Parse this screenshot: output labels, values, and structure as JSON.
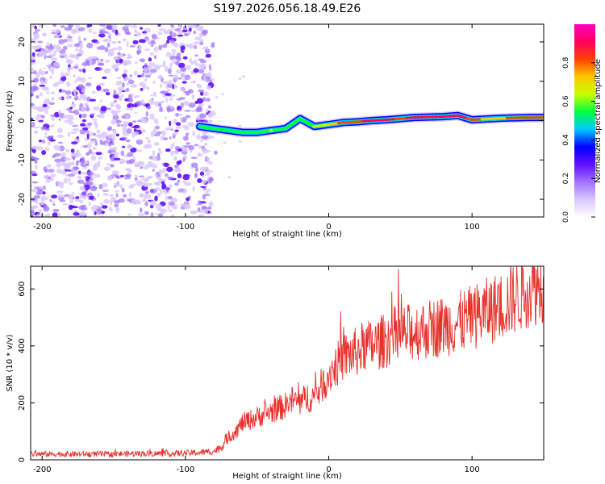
{
  "figure": {
    "title": "S197.2026.056.18.49.E26"
  },
  "chart_data": [
    {
      "type": "heatmap",
      "title": "S197.2026.056.18.49.E26",
      "xlabel": "Height of straight line (km)",
      "ylabel": "Frequency (Hz)",
      "xlim": [
        -208,
        150
      ],
      "ylim": [
        -24.5,
        24.5
      ],
      "x_ticks": [
        -200,
        -100,
        0,
        100
      ],
      "y_ticks": [
        -20,
        -10,
        0,
        10,
        20
      ],
      "noise_region": {
        "x_from": -208,
        "x_to": -82,
        "description": "scattered low-amplitude purple speckle"
      },
      "signal_track": {
        "x": [
          -90,
          -80,
          -70,
          -60,
          -50,
          -40,
          -30,
          -20,
          -10,
          0,
          10,
          20,
          30,
          40,
          50,
          60,
          70,
          80,
          90,
          100,
          110,
          120,
          130,
          140,
          150
        ],
        "frequency_hz": [
          -1.5,
          -2.0,
          -2.5,
          -3.0,
          -3.0,
          -2.5,
          -2.0,
          0.5,
          -1.5,
          -1.0,
          -0.5,
          -0.3,
          0.0,
          0.2,
          0.5,
          0.8,
          0.9,
          1.0,
          1.3,
          0.2,
          0.4,
          0.6,
          0.7,
          0.8,
          0.8
        ],
        "normalized_amplitude": [
          0.35,
          0.4,
          0.45,
          0.5,
          0.55,
          0.6,
          0.55,
          0.5,
          0.6,
          0.7,
          0.8,
          0.85,
          0.9,
          0.9,
          0.85,
          0.9,
          0.95,
          0.95,
          0.9,
          0.85,
          0.7,
          0.75,
          0.8,
          0.8,
          0.8
        ]
      },
      "colorbar": {
        "label": "Normalized spectral amplitude",
        "range": [
          0.0,
          1.0
        ],
        "ticks": [
          0.0,
          0.2,
          0.4,
          0.6,
          0.8
        ],
        "tick_labels": [
          "0.0",
          "0.2",
          "0.4",
          "0.6",
          "0.8"
        ],
        "colormap": [
          "#ffffff",
          "#d9c8ff",
          "#a070ff",
          "#6010ff",
          "#0000ff",
          "#00c8ff",
          "#00ff40",
          "#c8ff00",
          "#ffc800",
          "#ff4000",
          "#ff0060",
          "#ff00c0"
        ]
      }
    },
    {
      "type": "line",
      "xlabel": "Height of straight line (km)",
      "ylabel": "SNR (10 * v/v)",
      "xlim": [
        -208,
        150
      ],
      "ylim": [
        0,
        680
      ],
      "x_ticks": [
        -200,
        -100,
        0,
        100
      ],
      "y_ticks": [
        0,
        200,
        400,
        600
      ],
      "series": [
        {
          "name": "SNR",
          "color": "#e8302a",
          "x": [
            -208,
            -190,
            -170,
            -150,
            -130,
            -110,
            -90,
            -80,
            -75,
            -70,
            -65,
            -60,
            -55,
            -50,
            -45,
            -40,
            -35,
            -30,
            -25,
            -20,
            -15,
            -10,
            -5,
            0,
            5,
            10,
            15,
            20,
            25,
            30,
            35,
            40,
            45,
            50,
            60,
            70,
            80,
            90,
            100,
            110,
            120,
            130,
            140,
            150
          ],
          "y": [
            20,
            20,
            20,
            20,
            22,
            22,
            25,
            30,
            45,
            80,
            100,
            130,
            140,
            150,
            160,
            170,
            180,
            190,
            210,
            200,
            220,
            220,
            260,
            300,
            330,
            360,
            370,
            380,
            400,
            400,
            410,
            420,
            440,
            440,
            450,
            460,
            470,
            480,
            500,
            520,
            540,
            570,
            600,
            620
          ]
        }
      ]
    }
  ]
}
